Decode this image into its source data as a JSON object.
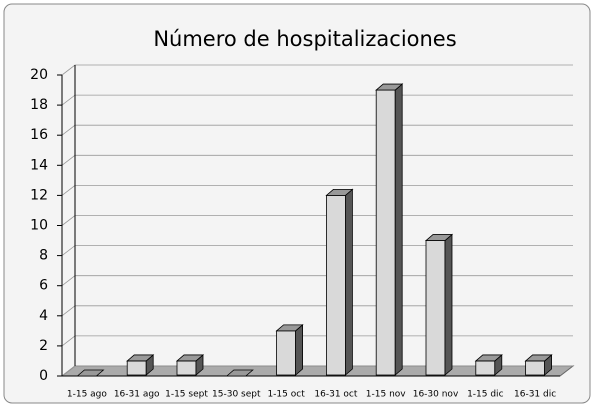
{
  "chart_data": {
    "type": "bar3d",
    "title": "Número de hospitalizaciones",
    "categories": [
      "1-15 ago",
      "16-31 ago",
      "1-15 sept",
      "15-30 sept",
      "1-15 oct",
      "16-31 oct",
      "1-15 nov",
      "16-30 nov",
      "1-15 dic",
      "16-31 dic"
    ],
    "values": [
      0,
      1,
      1,
      0,
      3,
      12,
      19,
      9,
      1,
      1
    ],
    "color": "#d9d9d9",
    "ylim": [
      0,
      20
    ],
    "yticks": [
      0,
      2,
      4,
      6,
      8,
      10,
      12,
      14,
      16,
      18,
      20
    ],
    "grid": true
  }
}
